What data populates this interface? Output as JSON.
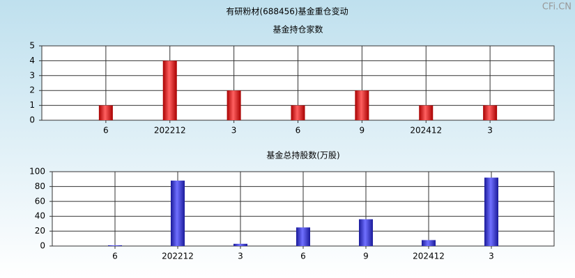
{
  "title": "有研粉材(688456)基金重仓变动",
  "watermark": "CFi.CN",
  "chart_data": [
    {
      "type": "bar",
      "title": "基金持仓家数",
      "categories": [
        "6",
        "202212",
        "3",
        "6",
        "9",
        "202412",
        "3"
      ],
      "values": [
        1,
        4,
        2,
        1,
        2,
        1,
        1
      ],
      "color": "red",
      "ylim": [
        0,
        5
      ],
      "yticks": [
        0,
        1,
        2,
        3,
        4,
        5
      ],
      "grid": true
    },
    {
      "type": "bar",
      "title": "基金总持股数(万股)",
      "categories": [
        "6",
        "202212",
        "3",
        "6",
        "9",
        "202412",
        "3"
      ],
      "values": [
        1,
        88,
        3,
        25,
        36,
        8,
        92
      ],
      "color": "blue",
      "ylim": [
        0,
        100
      ],
      "yticks": [
        0,
        20,
        40,
        60,
        80,
        100
      ],
      "grid": true
    }
  ]
}
